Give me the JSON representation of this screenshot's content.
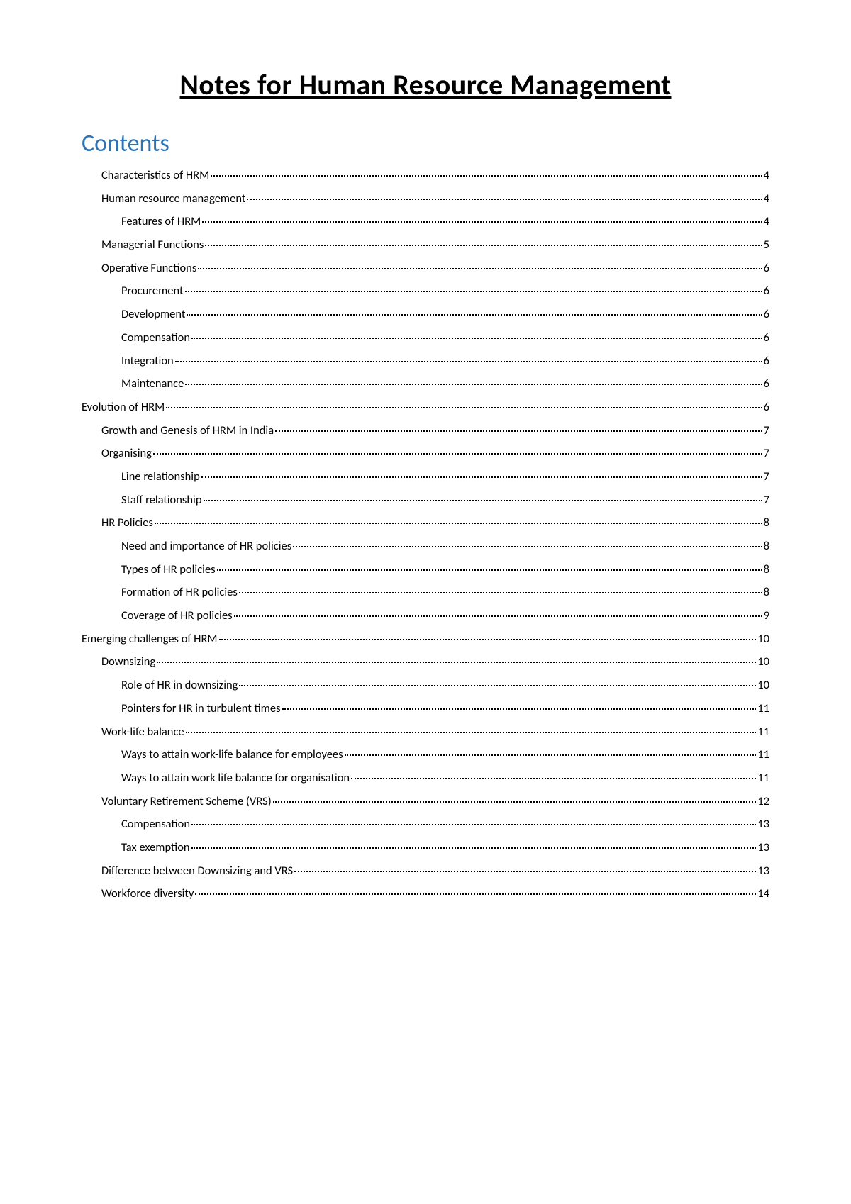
{
  "title": "Notes for Human Resource Management",
  "contents_heading": "Contents",
  "toc": [
    {
      "label": "Characteristics of HRM",
      "page": "4",
      "level": 1
    },
    {
      "label": "Human resource management",
      "page": "4",
      "level": 1
    },
    {
      "label": "Features of HRM",
      "page": "4",
      "level": 2
    },
    {
      "label": "Managerial Functions",
      "page": "5",
      "level": 1
    },
    {
      "label": "Operative Functions",
      "page": "6",
      "level": 1
    },
    {
      "label": "Procurement",
      "page": "6",
      "level": 2
    },
    {
      "label": "Development",
      "page": "6",
      "level": 2
    },
    {
      "label": "Compensation",
      "page": "6",
      "level": 2
    },
    {
      "label": "Integration",
      "page": "6",
      "level": 2
    },
    {
      "label": "Maintenance",
      "page": "6",
      "level": 2
    },
    {
      "label": "Evolution of HRM",
      "page": "6",
      "level": 0
    },
    {
      "label": "Growth and Genesis of HRM in India",
      "page": "7",
      "level": 1
    },
    {
      "label": "Organising",
      "page": "7",
      "level": 1
    },
    {
      "label": "Line relationship",
      "page": "7",
      "level": 2
    },
    {
      "label": "Staff relationship",
      "page": "7",
      "level": 2
    },
    {
      "label": "HR Policies",
      "page": "8",
      "level": 1
    },
    {
      "label": "Need and importance of HR policies",
      "page": "8",
      "level": 2
    },
    {
      "label": "Types of HR policies",
      "page": "8",
      "level": 2
    },
    {
      "label": "Formation of HR policies",
      "page": "8",
      "level": 2
    },
    {
      "label": "Coverage of HR policies",
      "page": "9",
      "level": 2
    },
    {
      "label": "Emerging challenges of HRM",
      "page": "10",
      "level": 0
    },
    {
      "label": "Downsizing",
      "page": "10",
      "level": 1
    },
    {
      "label": "Role of HR in downsizing",
      "page": "10",
      "level": 2
    },
    {
      "label": "Pointers for HR in turbulent times",
      "page": "11",
      "level": 2
    },
    {
      "label": "Work-life balance",
      "page": "11",
      "level": 1
    },
    {
      "label": "Ways to attain work-life balance for employees",
      "page": "11",
      "level": 2
    },
    {
      "label": "Ways to attain work life balance for organisation",
      "page": "11",
      "level": 2
    },
    {
      "label": "Voluntary Retirement Scheme (VRS)",
      "page": "12",
      "level": 1
    },
    {
      "label": "Compensation",
      "page": "13",
      "level": 2
    },
    {
      "label": "Tax exemption",
      "page": "13",
      "level": 2
    },
    {
      "label": "Difference between Downsizing and VRS",
      "page": "13",
      "level": 1
    },
    {
      "label": "Workforce diversity",
      "page": "14",
      "level": 1
    }
  ]
}
